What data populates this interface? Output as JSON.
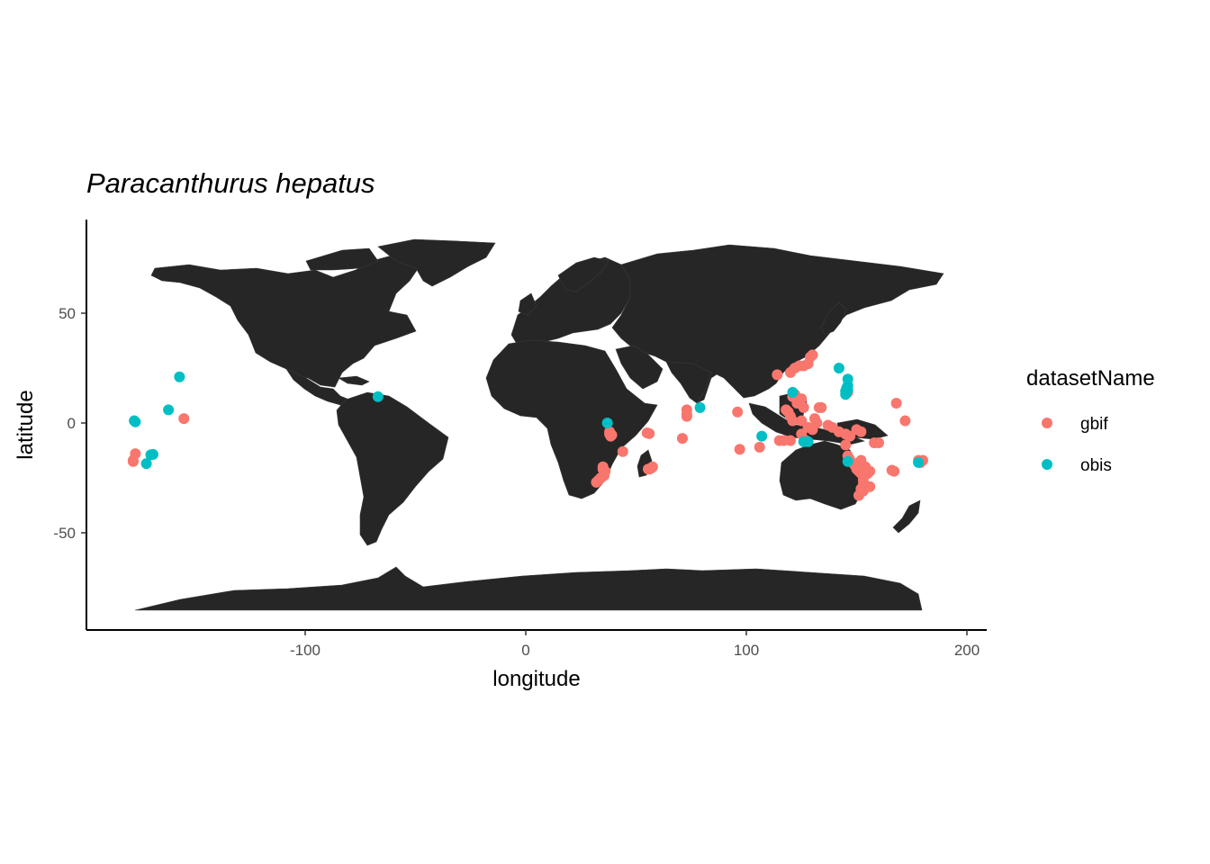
{
  "chart_data": {
    "type": "scatter",
    "title": "Paracanthurus hepatus",
    "xlabel": "longitude",
    "ylabel": "latitude",
    "xlim": [
      -200,
      210
    ],
    "ylim": [
      -93,
      91
    ],
    "xticks": [
      -100,
      0,
      100,
      200
    ],
    "yticks": [
      -50,
      0,
      50
    ],
    "xtick_labels": [
      "-100",
      "0",
      "100",
      "200"
    ],
    "ytick_labels": [
      "-50",
      "0",
      "50"
    ],
    "grid": false,
    "background_layer": "world country polygons (dark grey)",
    "legend": {
      "title": "datasetName",
      "placement": "right",
      "entries": [
        {
          "label": "gbif",
          "color": "#F8766D"
        },
        {
          "label": "obis",
          "color": "#00BFC4"
        }
      ]
    },
    "series": [
      {
        "name": "gbif",
        "color": "#F8766D",
        "points": [
          [
            -178,
            -17
          ],
          [
            -177,
            -14
          ],
          [
            -155,
            2
          ],
          [
            -178,
            -17.5
          ],
          [
            38,
            -4
          ],
          [
            38,
            -5
          ],
          [
            38.5,
            -6
          ],
          [
            39,
            -5.5
          ],
          [
            44,
            -13
          ],
          [
            35,
            -20
          ],
          [
            36,
            -22
          ],
          [
            35.5,
            -24
          ],
          [
            33,
            -26
          ],
          [
            32,
            -27
          ],
          [
            34,
            -25
          ],
          [
            35,
            -21
          ],
          [
            55,
            -4.5
          ],
          [
            56,
            -4.8
          ],
          [
            57,
            -20.5
          ],
          [
            55.5,
            -21
          ],
          [
            57.5,
            -20
          ],
          [
            56,
            -21
          ],
          [
            71,
            -7
          ],
          [
            73,
            3
          ],
          [
            73,
            4
          ],
          [
            73,
            6
          ],
          [
            96,
            5
          ],
          [
            97,
            -12
          ],
          [
            106,
            -11
          ],
          [
            114,
            22
          ],
          [
            120,
            23
          ],
          [
            122,
            25
          ],
          [
            124,
            26
          ],
          [
            126,
            26
          ],
          [
            128,
            27
          ],
          [
            129,
            30
          ],
          [
            130,
            31
          ],
          [
            121,
            12
          ],
          [
            122,
            13
          ],
          [
            123,
            9
          ],
          [
            124,
            10
          ],
          [
            126,
            7
          ],
          [
            125,
            11
          ],
          [
            120,
            3
          ],
          [
            119,
            5
          ],
          [
            121,
            1
          ],
          [
            125,
            1
          ],
          [
            128,
            -2
          ],
          [
            130,
            -3
          ],
          [
            131,
            2
          ],
          [
            132,
            0
          ],
          [
            125,
            -5
          ],
          [
            127,
            -8
          ],
          [
            120,
            -8
          ],
          [
            117,
            -8
          ],
          [
            115,
            -8
          ],
          [
            134,
            7
          ],
          [
            133,
            7
          ],
          [
            137,
            -1
          ],
          [
            139,
            -2
          ],
          [
            142,
            -4
          ],
          [
            145,
            -5
          ],
          [
            147,
            -6
          ],
          [
            150,
            -3
          ],
          [
            152,
            -4
          ],
          [
            145,
            -10
          ],
          [
            146,
            -15
          ],
          [
            147,
            -17
          ],
          [
            148,
            -18
          ],
          [
            149,
            -19
          ],
          [
            150,
            -21
          ],
          [
            151,
            -22
          ],
          [
            152,
            -23
          ],
          [
            153,
            -24
          ],
          [
            153,
            -26
          ],
          [
            153,
            -28
          ],
          [
            152,
            -30
          ],
          [
            153,
            -31
          ],
          [
            151,
            -33
          ],
          [
            156,
            -29
          ],
          [
            156,
            -22
          ],
          [
            155,
            -23
          ],
          [
            154,
            -20
          ],
          [
            152,
            -17
          ],
          [
            158,
            -9
          ],
          [
            160,
            -9
          ],
          [
            167,
            -22
          ],
          [
            166,
            -21.5
          ],
          [
            168,
            9
          ],
          [
            178,
            -17
          ],
          [
            179,
            -18
          ],
          [
            180,
            -17
          ],
          [
            172,
            1
          ],
          [
            118,
            6
          ],
          [
            146,
            14
          ]
        ]
      },
      {
        "name": "obis",
        "color": "#00BFC4",
        "points": [
          [
            -177,
            0.5
          ],
          [
            -177.5,
            1
          ],
          [
            -172,
            -18.5
          ],
          [
            -170,
            -14.5
          ],
          [
            -169,
            -14.3
          ],
          [
            -162,
            6
          ],
          [
            -157,
            21
          ],
          [
            -67,
            12
          ],
          [
            37,
            0
          ],
          [
            79,
            7
          ],
          [
            107,
            -6
          ],
          [
            121,
            14
          ],
          [
            126,
            -8.5
          ],
          [
            128,
            -8.5
          ],
          [
            142,
            25
          ],
          [
            145,
            13
          ],
          [
            146,
            15
          ],
          [
            146,
            17
          ],
          [
            146,
            20
          ],
          [
            145,
            14.5
          ],
          [
            145.5,
            16
          ],
          [
            146,
            -17.5
          ],
          [
            178,
            -18
          ]
        ]
      }
    ]
  }
}
